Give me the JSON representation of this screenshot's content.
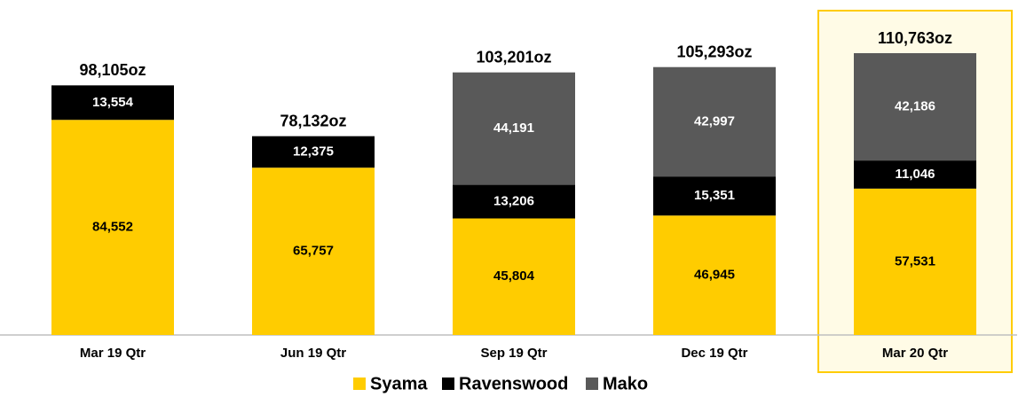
{
  "chart_data": {
    "type": "stacked_bar",
    "categories": [
      "Mar 19 Qtr",
      "Jun 19 Qtr",
      "Sep 19 Qtr",
      "Dec 19 Qtr",
      "Mar 20 Qtr"
    ],
    "series": [
      {
        "name": "Syama",
        "color": "#ffcc00",
        "values": [
          84552,
          65757,
          45804,
          46945,
          57531
        ],
        "value_labels": [
          "84,552",
          "65,757",
          "45,804",
          "46,945",
          "57,531"
        ]
      },
      {
        "name": "Ravenswood",
        "color": "#000000",
        "values": [
          13554,
          12375,
          13206,
          15351,
          11046
        ],
        "value_labels": [
          "13,554",
          "12,375",
          "13,206",
          "15,351",
          "11,046"
        ]
      },
      {
        "name": "Mako",
        "color": "#595959",
        "values": [
          null,
          null,
          44191,
          42997,
          42186
        ],
        "value_labels": [
          null,
          null,
          "44,191",
          "42,997",
          "42,186"
        ]
      }
    ],
    "totals": {
      "values": [
        98105,
        78132,
        103201,
        105293,
        110763
      ],
      "value_labels": [
        "98,105oz",
        "78,132oz",
        "103,201oz",
        "105,293oz",
        "110,763oz"
      ]
    }
  }
}
